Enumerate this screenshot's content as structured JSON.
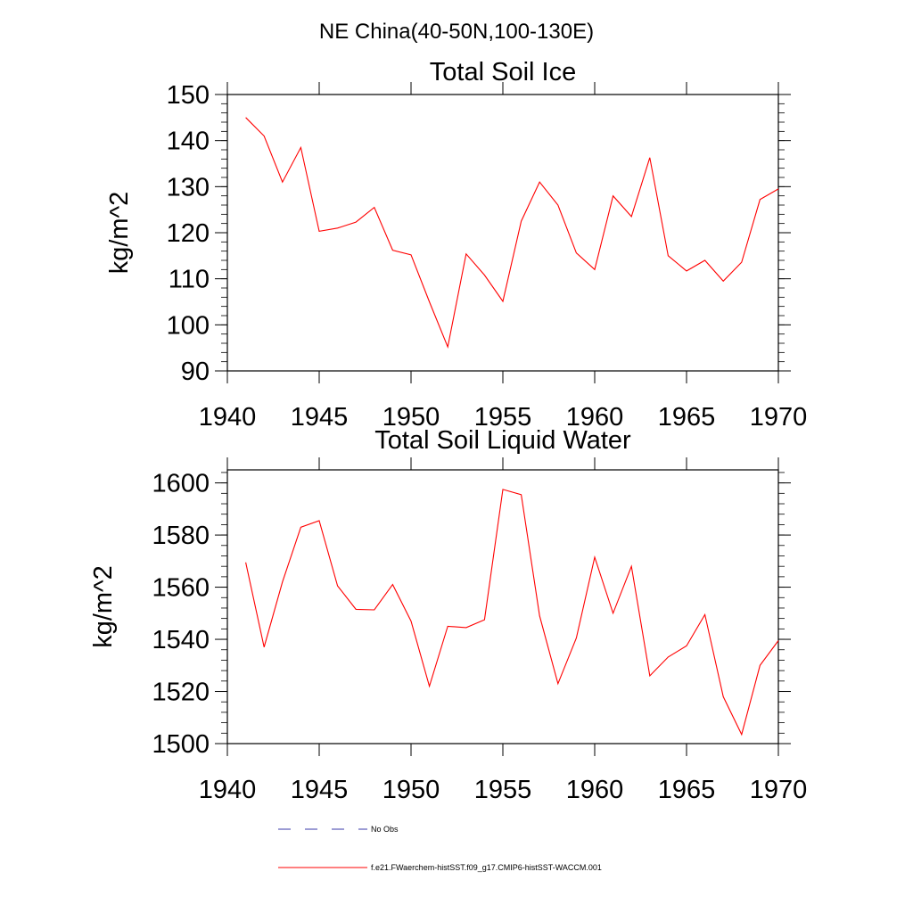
{
  "figure": {
    "title": "NE China(40-50N,100-130E)"
  },
  "chart_data": [
    {
      "type": "line",
      "title": "Total Soil Ice",
      "xlabel": "",
      "ylabel": "kg/m^2",
      "xlim": [
        1940,
        1970
      ],
      "ylim": [
        90,
        150
      ],
      "xticks": [
        1940,
        1945,
        1950,
        1955,
        1960,
        1965,
        1970
      ],
      "yticks": [
        90,
        100,
        110,
        120,
        130,
        140,
        150
      ],
      "series": [
        {
          "name": "f.e21.FWaerchem-histSST.f09_g17.CMIP6-histSST-WACCM.001",
          "color": "#ff0000",
          "x": [
            1941,
            1942,
            1943,
            1944,
            1945,
            1946,
            1947,
            1948,
            1949,
            1950,
            1951,
            1952,
            1953,
            1954,
            1955,
            1956,
            1957,
            1958,
            1959,
            1960,
            1961,
            1962,
            1963,
            1964,
            1965,
            1966,
            1967,
            1968,
            1969,
            1970
          ],
          "y": [
            145,
            141,
            131,
            138.5,
            120.3,
            121,
            122.3,
            125.5,
            116.2,
            115.2,
            105,
            95.2,
            115.4,
            110.8,
            105.1,
            122.5,
            131,
            126,
            115.6,
            112,
            128,
            123.5,
            136.3,
            115,
            111.7,
            114,
            109.5,
            113.6,
            127.2,
            129.5
          ]
        }
      ]
    },
    {
      "type": "line",
      "title": "Total Soil Liquid Water",
      "xlabel": "",
      "ylabel": "kg/m^2",
      "xlim": [
        1940,
        1970
      ],
      "ylim": [
        1500,
        1605
      ],
      "xticks": [
        1940,
        1945,
        1950,
        1955,
        1960,
        1965,
        1970
      ],
      "yticks": [
        1500,
        1520,
        1540,
        1560,
        1580,
        1600
      ],
      "series": [
        {
          "name": "f.e21.FWaerchem-histSST.f09_g17.CMIP6-histSST-WACCM.001",
          "color": "#ff0000",
          "x": [
            1941,
            1942,
            1943,
            1944,
            1945,
            1946,
            1947,
            1948,
            1949,
            1950,
            1951,
            1952,
            1953,
            1954,
            1955,
            1956,
            1957,
            1958,
            1959,
            1960,
            1961,
            1962,
            1963,
            1964,
            1965,
            1966,
            1967,
            1968,
            1969,
            1970
          ],
          "y": [
            1569.5,
            1537,
            1562,
            1583,
            1585.5,
            1560.5,
            1551.5,
            1551.3,
            1561,
            1547,
            1522,
            1545,
            1544.5,
            1547.5,
            1597.5,
            1595.5,
            1549,
            1523,
            1540.5,
            1571.5,
            1550,
            1568,
            1526,
            1533.2,
            1537.5,
            1549.5,
            1518,
            1503.5,
            1530,
            1539.5
          ]
        }
      ]
    }
  ],
  "legend": {
    "position": "bottom",
    "entries": [
      {
        "label": "No Obs",
        "color": "#3a3aa8",
        "dash": "dashed"
      },
      {
        "label": "f.e21.FWaerchem-histSST.f09_g17.CMIP6-histSST-WACCM.001",
        "color": "#ff0000",
        "dash": "solid"
      }
    ]
  }
}
